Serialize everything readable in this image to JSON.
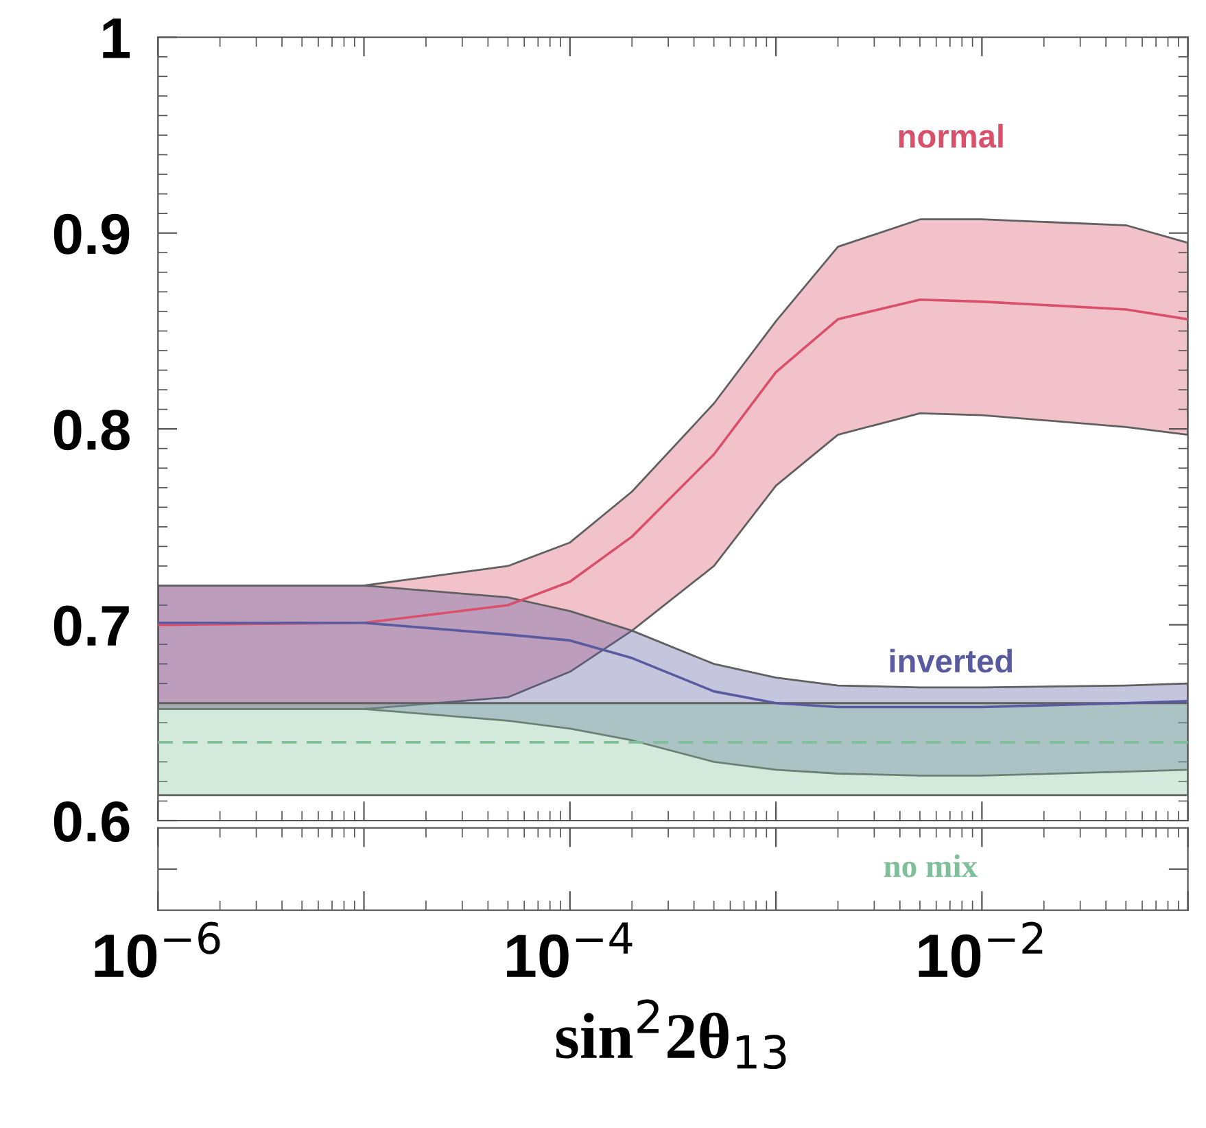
{
  "chart_data": {
    "type": "line",
    "xlabel": "sin$^{2}$2θ$_{13}$",
    "log": "x",
    "x": [
      1e-06,
      1e-05,
      5e-05,
      0.0001,
      0.0002,
      0.0005,
      0.001,
      0.002,
      0.005,
      0.01,
      0.05,
      0.1
    ],
    "series": [
      {
        "name": "normal",
        "color": "#d9506a",
        "values": [
          0.7,
          0.701,
          0.71,
          0.722,
          0.745,
          0.787,
          0.829,
          0.856,
          0.866,
          0.865,
          0.861,
          0.856
        ],
        "lower": [
          0.657,
          0.657,
          0.663,
          0.676,
          0.697,
          0.73,
          0.771,
          0.797,
          0.808,
          0.807,
          0.801,
          0.797
        ],
        "upper": [
          0.72,
          0.72,
          0.73,
          0.742,
          0.768,
          0.813,
          0.855,
          0.893,
          0.907,
          0.907,
          0.904,
          0.895
        ]
      },
      {
        "name": "inverted",
        "color": "#5a5aa0",
        "values": [
          0.701,
          0.701,
          0.695,
          0.692,
          0.683,
          0.666,
          0.66,
          0.658,
          0.658,
          0.658,
          0.66,
          0.661
        ],
        "lower": [
          0.657,
          0.657,
          0.651,
          0.647,
          0.641,
          0.63,
          0.626,
          0.624,
          0.623,
          0.623,
          0.625,
          0.626
        ],
        "upper": [
          0.72,
          0.72,
          0.714,
          0.707,
          0.697,
          0.68,
          0.673,
          0.669,
          0.668,
          0.668,
          0.669,
          0.67
        ]
      },
      {
        "name": "no mix",
        "color": "#7fbf99",
        "line_style": "dashed",
        "x": [
          1e-06,
          0.1
        ],
        "values": [
          0.64,
          0.64
        ],
        "lower": [
          0.613,
          0.613
        ],
        "upper": [
          0.66,
          0.66
        ]
      }
    ],
    "xlim": [
      1e-06,
      0.1
    ],
    "xticks": [
      {
        "value": 1e-06,
        "label": "10$^{−6}$"
      },
      {
        "value": 1e-05,
        "label": null
      },
      {
        "value": 0.0001,
        "label": "10$^{−4}$"
      },
      {
        "value": 0.001,
        "label": null
      },
      {
        "value": 0.01,
        "label": "10$^{−2}$"
      },
      {
        "value": 0.1,
        "label": null
      }
    ],
    "ylim": [
      0.6,
      1
    ],
    "yticks": [
      0.6,
      0.7,
      0.8,
      0.9,
      1
    ],
    "grid": false,
    "marker": "none"
  }
}
